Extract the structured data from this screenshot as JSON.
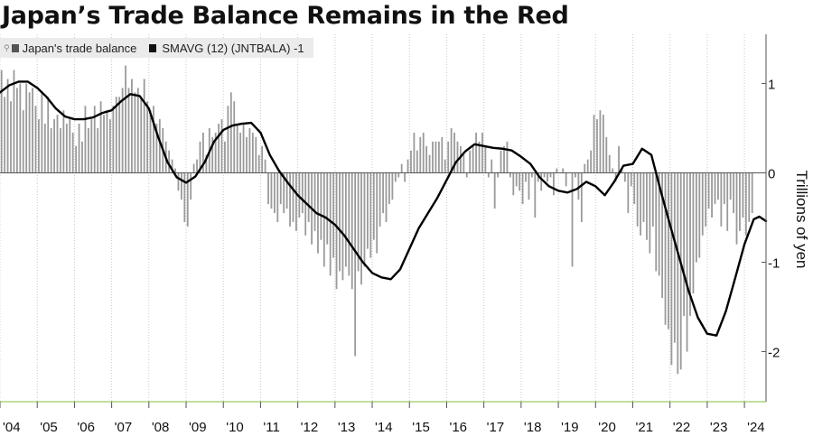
{
  "title": "Japan’s Trade Balance Remains in the Red",
  "legend": {
    "bars_label": "Japan's trade balance",
    "line_label": "SMAVG (12) (JNTBALA) -1"
  },
  "chart_data": {
    "type": "bar",
    "title": "Japan’s Trade Balance Remains in the Red",
    "ylabel": "Trillions of yen",
    "xlabel": "",
    "ylim": [
      -2.55,
      1.55
    ],
    "yticks": [
      1,
      0,
      -1,
      -2
    ],
    "ytick_labels": [
      "1",
      "0",
      "-1",
      "-2"
    ],
    "xlim": [
      2004.0,
      2024.58
    ],
    "xticks": [
      2004,
      2005,
      2006,
      2007,
      2008,
      2009,
      2010,
      2011,
      2012,
      2013,
      2014,
      2015,
      2016,
      2017,
      2018,
      2019,
      2020,
      2021,
      2022,
      2023,
      2024
    ],
    "xtick_labels": [
      "'04",
      "'05",
      "'06",
      "'07",
      "'08",
      "'09",
      "'10",
      "'11",
      "'12",
      "'13",
      "'14",
      "'15",
      "'16",
      "'17",
      "'18",
      "'19",
      "'20",
      "'21",
      "'22",
      "'23",
      "'24"
    ],
    "grid": "vertical dotted at year ticks",
    "legend_position": "top-left",
    "colors": {
      "bars": "#9a9a9a",
      "line": "#000000",
      "axis": "#9ccc65",
      "zero": "#555555",
      "grid": "#c8c8c8"
    },
    "series": [
      {
        "name": "Japan's trade balance",
        "kind": "bar",
        "frequency": "monthly",
        "x_start": "2004-01",
        "values": [
          1.15,
          0.85,
          1.05,
          0.8,
          1.15,
          0.95,
          1.0,
          0.7,
          1.0,
          0.9,
          0.95,
          0.75,
          0.6,
          0.9,
          0.55,
          0.85,
          0.5,
          0.6,
          0.65,
          0.5,
          0.7,
          0.55,
          0.6,
          0.45,
          0.3,
          0.55,
          0.35,
          0.75,
          0.5,
          0.6,
          0.75,
          0.5,
          0.8,
          0.65,
          0.7,
          0.6,
          0.75,
          0.85,
          0.85,
          0.95,
          1.2,
          0.95,
          1.05,
          0.9,
          0.95,
          0.85,
          1.05,
          0.8,
          0.7,
          0.75,
          0.55,
          0.6,
          0.5,
          0.35,
          0.25,
          0.15,
          0.05,
          -0.2,
          -0.3,
          -0.55,
          -0.6,
          -0.3,
          0.1,
          0.15,
          0.35,
          0.45,
          0.2,
          0.5,
          0.4,
          0.45,
          0.55,
          0.6,
          0.35,
          0.75,
          0.9,
          0.8,
          0.55,
          0.45,
          0.55,
          0.4,
          0.5,
          0.45,
          0.4,
          0.2,
          0.3,
          0.15,
          -0.35,
          -0.4,
          -0.45,
          -0.55,
          -0.35,
          -0.45,
          -0.4,
          -0.6,
          -0.55,
          -0.65,
          -0.5,
          -0.45,
          -0.7,
          -0.55,
          -0.8,
          -0.65,
          -0.9,
          -0.75,
          -1.05,
          -0.8,
          -1.15,
          -0.95,
          -1.3,
          -1.1,
          -1.2,
          -1.05,
          -1.15,
          -1.3,
          -2.05,
          -1.1,
          -1.25,
          -1.05,
          -0.85,
          -0.95,
          -0.75,
          -0.9,
          -0.6,
          -0.45,
          -0.55,
          -0.35,
          -0.3,
          -0.1,
          -0.05,
          0.1,
          -0.1,
          0.15,
          0.25,
          0.45,
          0.25,
          0.4,
          0.45,
          0.3,
          0.2,
          0.35,
          0.35,
          0.35,
          0.4,
          0.15,
          0.35,
          0.5,
          0.45,
          0.35,
          0.3,
          0.2,
          -0.05,
          0.25,
          0.3,
          0.45,
          0.35,
          0.45,
          0.3,
          -0.05,
          0.15,
          -0.4,
          -0.05,
          0.25,
          0.3,
          0.35,
          -0.05,
          -0.25,
          -0.15,
          -0.2,
          -0.35,
          -0.1,
          -0.3,
          -0.05,
          -0.5,
          -0.1,
          -0.2,
          -0.05,
          -0.1,
          -0.05,
          -0.25,
          0.05,
          0.0,
          0.05,
          -0.15,
          0.0,
          -1.05,
          -0.05,
          -0.3,
          -0.55,
          0.1,
          0.15,
          0.25,
          0.65,
          0.6,
          0.7,
          0.65,
          0.4,
          0.2,
          0.05,
          -0.1,
          0.3,
          0.05,
          -0.1,
          -0.45,
          -0.15,
          -0.35,
          -0.6,
          -0.7,
          -0.55,
          -0.75,
          -0.9,
          -0.6,
          -1.1,
          -1.15,
          -1.4,
          -1.7,
          -1.75,
          -2.15,
          -1.9,
          -2.25,
          -2.2,
          -1.6,
          -2.0,
          -1.6,
          -1.35,
          -1.0,
          -0.95,
          -0.7,
          -0.6,
          -0.4,
          -0.5,
          -0.35,
          -0.3,
          -0.6,
          -0.35,
          -0.65,
          -0.3,
          -0.45,
          -0.8,
          -0.65,
          -0.5,
          -0.7,
          -0.55,
          -0.45
        ]
      },
      {
        "name": "SMAVG (12) (JNTBALA) -1",
        "kind": "line",
        "points": [
          [
            2004.0,
            0.9
          ],
          [
            2004.25,
            0.98
          ],
          [
            2004.5,
            1.02
          ],
          [
            2004.75,
            1.02
          ],
          [
            2005.0,
            0.95
          ],
          [
            2005.25,
            0.85
          ],
          [
            2005.5,
            0.72
          ],
          [
            2005.75,
            0.63
          ],
          [
            2006.0,
            0.6
          ],
          [
            2006.25,
            0.6
          ],
          [
            2006.5,
            0.62
          ],
          [
            2006.75,
            0.67
          ],
          [
            2007.0,
            0.7
          ],
          [
            2007.25,
            0.8
          ],
          [
            2007.5,
            0.88
          ],
          [
            2007.75,
            0.86
          ],
          [
            2008.0,
            0.72
          ],
          [
            2008.25,
            0.4
          ],
          [
            2008.5,
            0.12
          ],
          [
            2008.75,
            -0.05
          ],
          [
            2009.0,
            -0.11
          ],
          [
            2009.25,
            -0.04
          ],
          [
            2009.5,
            0.12
          ],
          [
            2009.75,
            0.35
          ],
          [
            2010.0,
            0.48
          ],
          [
            2010.25,
            0.53
          ],
          [
            2010.5,
            0.55
          ],
          [
            2010.75,
            0.56
          ],
          [
            2011.0,
            0.45
          ],
          [
            2011.25,
            0.2
          ],
          [
            2011.5,
            0.02
          ],
          [
            2011.75,
            -0.12
          ],
          [
            2012.0,
            -0.25
          ],
          [
            2012.25,
            -0.35
          ],
          [
            2012.5,
            -0.45
          ],
          [
            2012.75,
            -0.5
          ],
          [
            2013.0,
            -0.58
          ],
          [
            2013.25,
            -0.7
          ],
          [
            2013.5,
            -0.85
          ],
          [
            2013.75,
            -1.0
          ],
          [
            2014.0,
            -1.12
          ],
          [
            2014.25,
            -1.17
          ],
          [
            2014.5,
            -1.19
          ],
          [
            2014.75,
            -1.08
          ],
          [
            2015.0,
            -0.85
          ],
          [
            2015.25,
            -0.62
          ],
          [
            2015.5,
            -0.45
          ],
          [
            2015.75,
            -0.28
          ],
          [
            2016.0,
            -0.08
          ],
          [
            2016.25,
            0.12
          ],
          [
            2016.5,
            0.24
          ],
          [
            2016.75,
            0.32
          ],
          [
            2017.0,
            0.3
          ],
          [
            2017.25,
            0.28
          ],
          [
            2017.5,
            0.27
          ],
          [
            2017.75,
            0.25
          ],
          [
            2018.0,
            0.18
          ],
          [
            2018.25,
            0.1
          ],
          [
            2018.5,
            -0.05
          ],
          [
            2018.75,
            -0.15
          ],
          [
            2019.0,
            -0.2
          ],
          [
            2019.25,
            -0.22
          ],
          [
            2019.5,
            -0.18
          ],
          [
            2019.75,
            -0.1
          ],
          [
            2020.0,
            -0.15
          ],
          [
            2020.25,
            -0.25
          ],
          [
            2020.5,
            -0.1
          ],
          [
            2020.75,
            0.08
          ],
          [
            2021.0,
            0.1
          ],
          [
            2021.25,
            0.27
          ],
          [
            2021.5,
            0.2
          ],
          [
            2021.75,
            -0.2
          ],
          [
            2022.0,
            -0.58
          ],
          [
            2022.25,
            -0.95
          ],
          [
            2022.5,
            -1.32
          ],
          [
            2022.75,
            -1.62
          ],
          [
            2023.0,
            -1.8
          ],
          [
            2023.25,
            -1.82
          ],
          [
            2023.5,
            -1.55
          ],
          [
            2023.75,
            -1.18
          ],
          [
            2024.0,
            -0.8
          ],
          [
            2024.25,
            -0.52
          ],
          [
            2024.4,
            -0.49
          ],
          [
            2024.58,
            -0.54
          ]
        ]
      }
    ]
  }
}
